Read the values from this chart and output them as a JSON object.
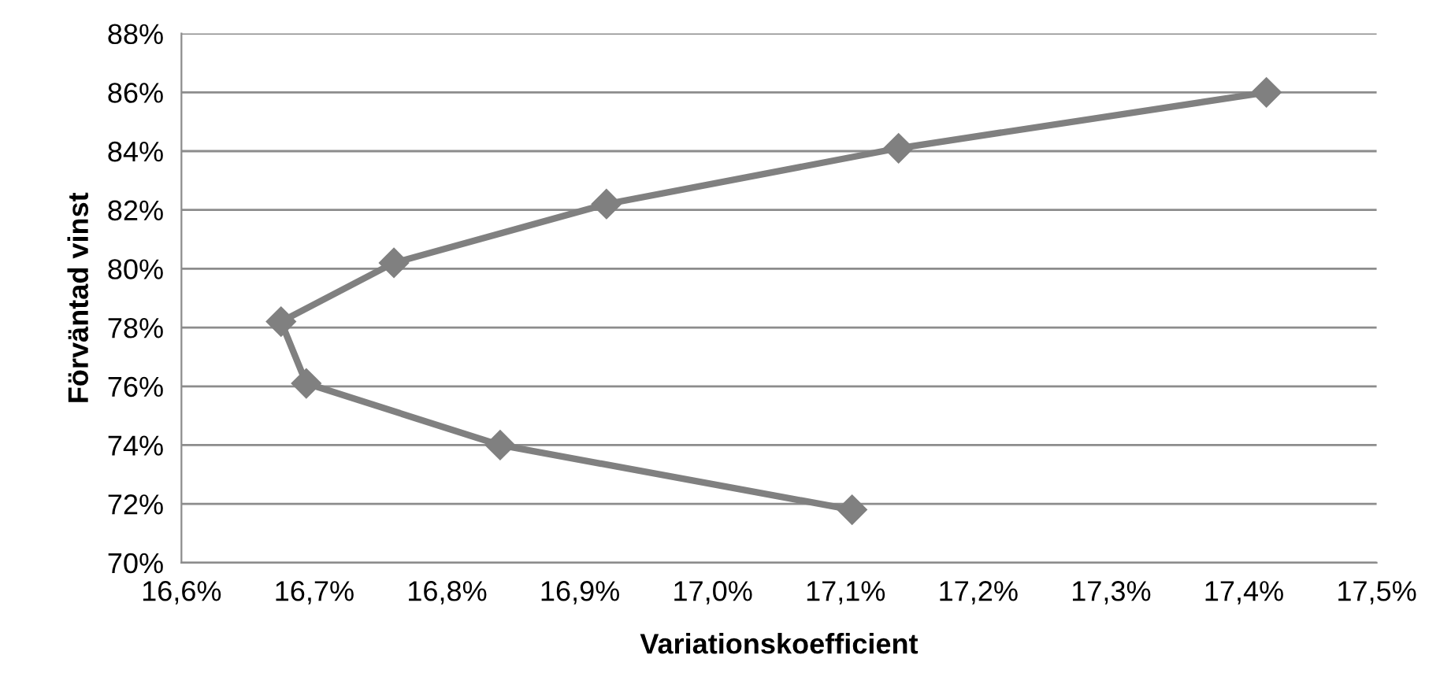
{
  "chart_data": {
    "type": "line",
    "xlabel": "Variationskoefficient",
    "ylabel": "Förväntad vinst",
    "series": [
      {
        "color": "#808080",
        "x": [
          17.105,
          16.84,
          16.694,
          16.675,
          16.76,
          16.92,
          17.14,
          17.417
        ],
        "values": [
          71.8,
          74.0,
          76.1,
          78.2,
          80.2,
          82.2,
          84.1,
          86.0
        ]
      }
    ],
    "xlim": [
      16.6,
      17.5
    ],
    "ylim": [
      70,
      88
    ],
    "xticks": [
      {
        "value": 16.6,
        "label": "16,6%"
      },
      {
        "value": 16.7,
        "label": "16,7%"
      },
      {
        "value": 16.8,
        "label": "16,8%"
      },
      {
        "value": 16.9,
        "label": "16,9%"
      },
      {
        "value": 17.0,
        "label": "17,0%"
      },
      {
        "value": 17.1,
        "label": "17,1%"
      },
      {
        "value": 17.2,
        "label": "17,2%"
      },
      {
        "value": 17.3,
        "label": "17,3%"
      },
      {
        "value": 17.4,
        "label": "17,4%"
      },
      {
        "value": 17.5,
        "label": "17,5%"
      }
    ],
    "yticks": [
      {
        "value": 70,
        "label": "70%"
      },
      {
        "value": 72,
        "label": "72%"
      },
      {
        "value": 74,
        "label": "74%"
      },
      {
        "value": 76,
        "label": "76%"
      },
      {
        "value": 78,
        "label": "78%"
      },
      {
        "value": 80,
        "label": "80%"
      },
      {
        "value": 82,
        "label": "82%"
      },
      {
        "value": 84,
        "label": "84%"
      },
      {
        "value": 86,
        "label": "86%"
      },
      {
        "value": 88,
        "label": "88%"
      }
    ],
    "grid": "y",
    "marker": "diamond",
    "line_style": "solid"
  }
}
